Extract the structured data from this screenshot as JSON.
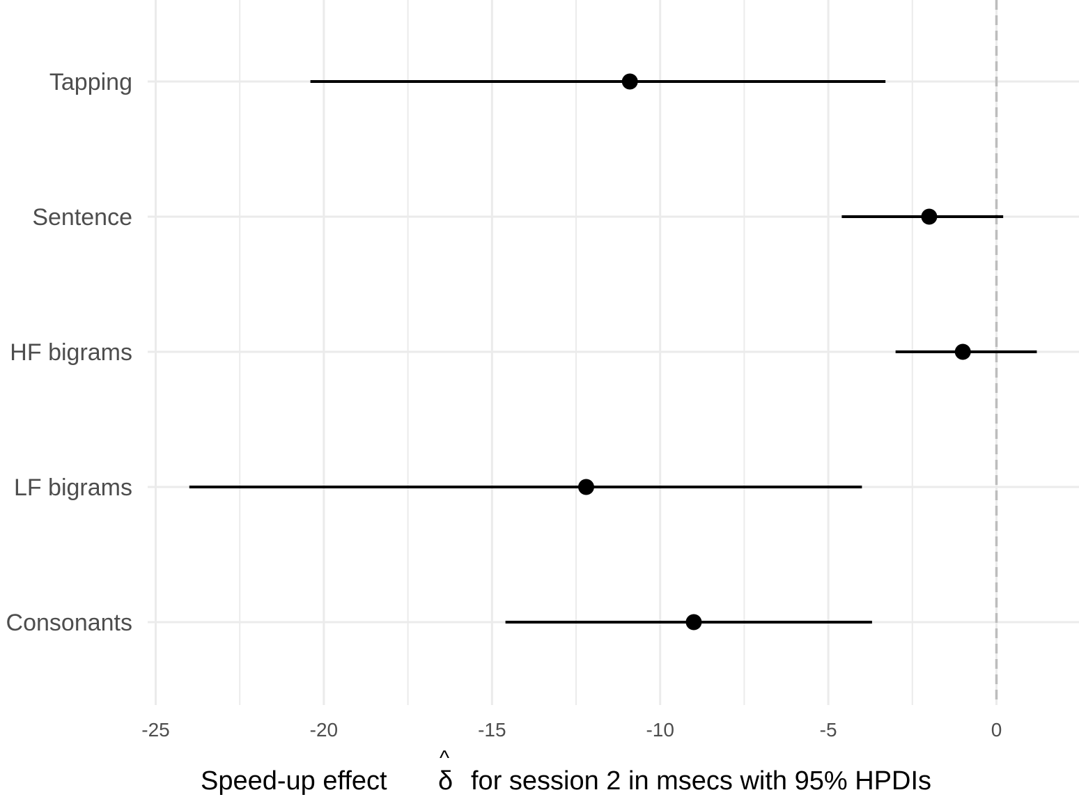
{
  "chart_data": {
    "type": "forest",
    "orientation": "horizontal",
    "xlabel_prefix": "Speed-up effect",
    "xlabel_symbol": "δ",
    "xlabel_symbol_accent": "^",
    "xlabel_suffix": "for session 2 in msecs with 95% HPDIs",
    "ylabel": "",
    "xlim": [
      -25,
      2.5
    ],
    "x_ticks": [
      -25,
      -20,
      -15,
      -10,
      -5,
      0
    ],
    "x_tick_labels": [
      "-25",
      "-20",
      "-15",
      "-10",
      "-5",
      "0"
    ],
    "reference_line": {
      "x": 0,
      "style": "dashed"
    },
    "grid": true,
    "legend": "none",
    "categories": [
      "Tapping",
      "Sentence",
      "HF bigrams",
      "LF bigrams",
      "Consonants"
    ],
    "estimates": [
      -10.9,
      -2.0,
      -1.0,
      -12.2,
      -9.0
    ],
    "lower": [
      -20.4,
      -4.6,
      -3.0,
      -24.0,
      -14.6
    ],
    "upper": [
      -3.3,
      0.2,
      1.2,
      -4.0,
      -3.7
    ],
    "colors": {
      "point": "#000000",
      "interval": "#000000",
      "grid_major": "#ebebeb",
      "grid_minor": "#ebebeb",
      "reference": "#bdbdbd",
      "tick_text": "#4d4d4d"
    }
  }
}
